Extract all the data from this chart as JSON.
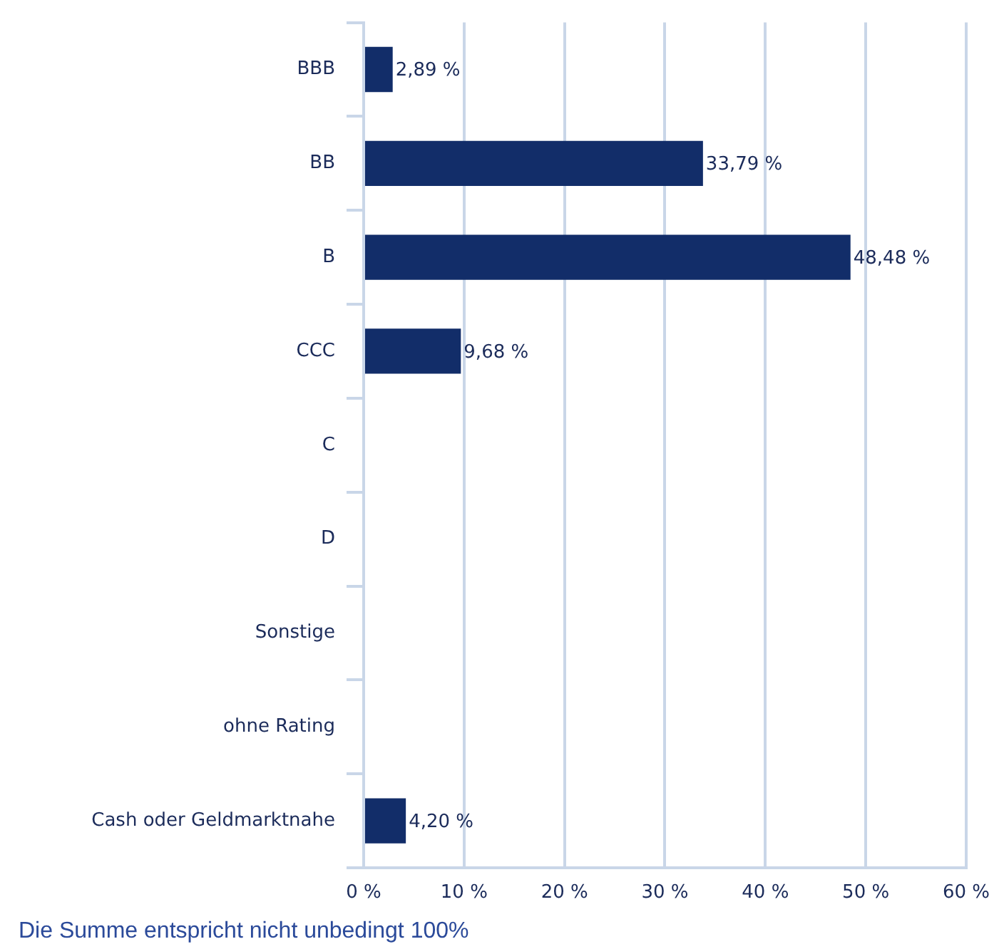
{
  "chart_data": {
    "type": "bar",
    "orientation": "horizontal",
    "categories": [
      "BBB",
      "BB",
      "B",
      "CCC",
      "C",
      "D",
      "Sonstige",
      "ohne Rating",
      "Cash oder Geldmarktnahe"
    ],
    "values": [
      2.89,
      33.79,
      48.48,
      9.68,
      null,
      null,
      null,
      null,
      4.2
    ],
    "value_labels": [
      "2,89 %",
      "33,79 %",
      "48,48 %",
      "9,68 %",
      null,
      null,
      null,
      null,
      "4,20 %"
    ],
    "color": "#122d69",
    "xlim": [
      0,
      60
    ],
    "xticks": [
      {
        "value": 0,
        "label": "0 %"
      },
      {
        "value": 10,
        "label": "10 %"
      },
      {
        "value": 20,
        "label": "20 %"
      },
      {
        "value": 30,
        "label": "30 %"
      },
      {
        "value": 40,
        "label": "40 %"
      },
      {
        "value": 50,
        "label": "50 %"
      },
      {
        "value": 60,
        "label": "60 %"
      }
    ],
    "grid": "x",
    "annotations": [
      "Die Summe entspricht nicht unbedingt 100%"
    ]
  }
}
